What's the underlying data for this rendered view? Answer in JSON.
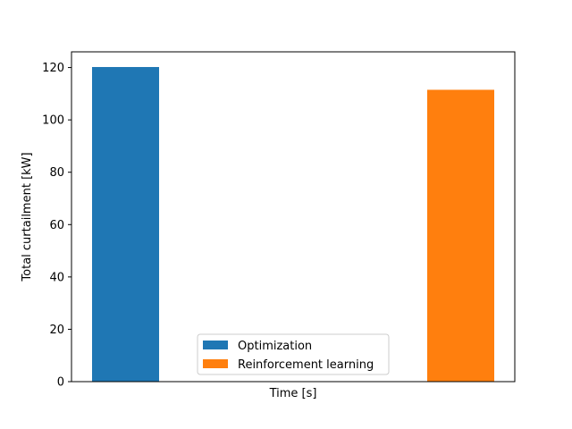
{
  "chart_data": {
    "type": "bar",
    "xlabel": "Time [s]",
    "ylabel": "Total curtailment [kW]",
    "ylim": [
      0,
      126
    ],
    "yticks": [
      0,
      20,
      40,
      60,
      80,
      100,
      120
    ],
    "x_tick_labels": "none",
    "grid": false,
    "legend_position": "lower center",
    "series": [
      {
        "name": "Optimization",
        "value": 120.2,
        "color": "#1f77b4"
      },
      {
        "name": "Reinforcement learning",
        "value": 111.5,
        "color": "#ff7f0e"
      }
    ]
  }
}
